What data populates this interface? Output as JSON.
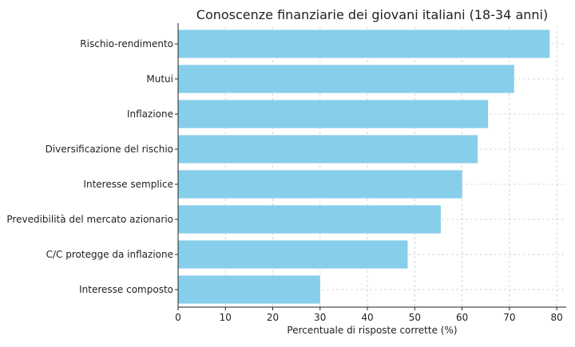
{
  "chart_data": {
    "type": "bar",
    "orientation": "horizontal",
    "title": "Conoscenze finanziarie dei giovani italiani (18-34 anni)",
    "xlabel": "Percentuale di risposte corrette (%)",
    "ylabel": "",
    "xlim": [
      0,
      82
    ],
    "xticks": [
      0,
      10,
      20,
      30,
      40,
      50,
      60,
      70,
      80
    ],
    "grid": true,
    "legend": "none",
    "bar_color": "#87ceeb",
    "categories": [
      "Rischio-rendimento",
      "Mutui",
      "Inflazione",
      "Diversificazione del rischio",
      "Interesse semplice",
      "Prevedibilità del mercato azionario",
      "C/C protegge da inflazione",
      "Interesse composto"
    ],
    "values": [
      78.5,
      71,
      65.5,
      63.3,
      60,
      55.5,
      48.5,
      30
    ]
  }
}
